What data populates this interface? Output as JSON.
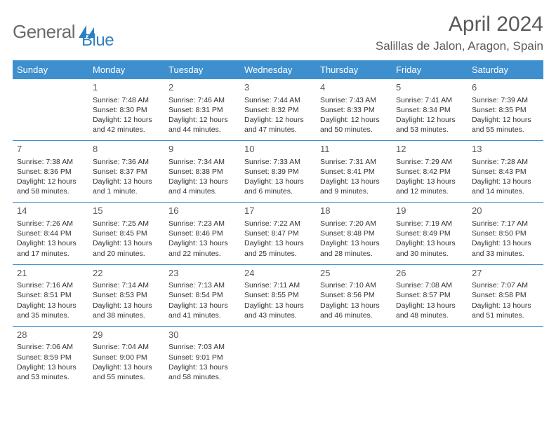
{
  "brand": {
    "word1": "General",
    "word2": "Blue",
    "color_general": "#6a6a6a",
    "color_blue": "#2d7fc1",
    "icon_fill": "#2d7fc1"
  },
  "header": {
    "title": "April 2024",
    "location": "Salillas de Jalon, Aragon, Spain",
    "title_color": "#5a5a5a"
  },
  "calendar": {
    "header_bg": "#3e8fce",
    "header_text": "#ffffff",
    "row_sep_color": "#3e8fce",
    "day_headers": [
      "Sunday",
      "Monday",
      "Tuesday",
      "Wednesday",
      "Thursday",
      "Friday",
      "Saturday"
    ],
    "weeks": [
      [
        null,
        {
          "n": "1",
          "l": [
            "Sunrise: 7:48 AM",
            "Sunset: 8:30 PM",
            "Daylight: 12 hours",
            "and 42 minutes."
          ]
        },
        {
          "n": "2",
          "l": [
            "Sunrise: 7:46 AM",
            "Sunset: 8:31 PM",
            "Daylight: 12 hours",
            "and 44 minutes."
          ]
        },
        {
          "n": "3",
          "l": [
            "Sunrise: 7:44 AM",
            "Sunset: 8:32 PM",
            "Daylight: 12 hours",
            "and 47 minutes."
          ]
        },
        {
          "n": "4",
          "l": [
            "Sunrise: 7:43 AM",
            "Sunset: 8:33 PM",
            "Daylight: 12 hours",
            "and 50 minutes."
          ]
        },
        {
          "n": "5",
          "l": [
            "Sunrise: 7:41 AM",
            "Sunset: 8:34 PM",
            "Daylight: 12 hours",
            "and 53 minutes."
          ]
        },
        {
          "n": "6",
          "l": [
            "Sunrise: 7:39 AM",
            "Sunset: 8:35 PM",
            "Daylight: 12 hours",
            "and 55 minutes."
          ]
        }
      ],
      [
        {
          "n": "7",
          "l": [
            "Sunrise: 7:38 AM",
            "Sunset: 8:36 PM",
            "Daylight: 12 hours",
            "and 58 minutes."
          ]
        },
        {
          "n": "8",
          "l": [
            "Sunrise: 7:36 AM",
            "Sunset: 8:37 PM",
            "Daylight: 13 hours",
            "and 1 minute."
          ]
        },
        {
          "n": "9",
          "l": [
            "Sunrise: 7:34 AM",
            "Sunset: 8:38 PM",
            "Daylight: 13 hours",
            "and 4 minutes."
          ]
        },
        {
          "n": "10",
          "l": [
            "Sunrise: 7:33 AM",
            "Sunset: 8:39 PM",
            "Daylight: 13 hours",
            "and 6 minutes."
          ]
        },
        {
          "n": "11",
          "l": [
            "Sunrise: 7:31 AM",
            "Sunset: 8:41 PM",
            "Daylight: 13 hours",
            "and 9 minutes."
          ]
        },
        {
          "n": "12",
          "l": [
            "Sunrise: 7:29 AM",
            "Sunset: 8:42 PM",
            "Daylight: 13 hours",
            "and 12 minutes."
          ]
        },
        {
          "n": "13",
          "l": [
            "Sunrise: 7:28 AM",
            "Sunset: 8:43 PM",
            "Daylight: 13 hours",
            "and 14 minutes."
          ]
        }
      ],
      [
        {
          "n": "14",
          "l": [
            "Sunrise: 7:26 AM",
            "Sunset: 8:44 PM",
            "Daylight: 13 hours",
            "and 17 minutes."
          ]
        },
        {
          "n": "15",
          "l": [
            "Sunrise: 7:25 AM",
            "Sunset: 8:45 PM",
            "Daylight: 13 hours",
            "and 20 minutes."
          ]
        },
        {
          "n": "16",
          "l": [
            "Sunrise: 7:23 AM",
            "Sunset: 8:46 PM",
            "Daylight: 13 hours",
            "and 22 minutes."
          ]
        },
        {
          "n": "17",
          "l": [
            "Sunrise: 7:22 AM",
            "Sunset: 8:47 PM",
            "Daylight: 13 hours",
            "and 25 minutes."
          ]
        },
        {
          "n": "18",
          "l": [
            "Sunrise: 7:20 AM",
            "Sunset: 8:48 PM",
            "Daylight: 13 hours",
            "and 28 minutes."
          ]
        },
        {
          "n": "19",
          "l": [
            "Sunrise: 7:19 AM",
            "Sunset: 8:49 PM",
            "Daylight: 13 hours",
            "and 30 minutes."
          ]
        },
        {
          "n": "20",
          "l": [
            "Sunrise: 7:17 AM",
            "Sunset: 8:50 PM",
            "Daylight: 13 hours",
            "and 33 minutes."
          ]
        }
      ],
      [
        {
          "n": "21",
          "l": [
            "Sunrise: 7:16 AM",
            "Sunset: 8:51 PM",
            "Daylight: 13 hours",
            "and 35 minutes."
          ]
        },
        {
          "n": "22",
          "l": [
            "Sunrise: 7:14 AM",
            "Sunset: 8:53 PM",
            "Daylight: 13 hours",
            "and 38 minutes."
          ]
        },
        {
          "n": "23",
          "l": [
            "Sunrise: 7:13 AM",
            "Sunset: 8:54 PM",
            "Daylight: 13 hours",
            "and 41 minutes."
          ]
        },
        {
          "n": "24",
          "l": [
            "Sunrise: 7:11 AM",
            "Sunset: 8:55 PM",
            "Daylight: 13 hours",
            "and 43 minutes."
          ]
        },
        {
          "n": "25",
          "l": [
            "Sunrise: 7:10 AM",
            "Sunset: 8:56 PM",
            "Daylight: 13 hours",
            "and 46 minutes."
          ]
        },
        {
          "n": "26",
          "l": [
            "Sunrise: 7:08 AM",
            "Sunset: 8:57 PM",
            "Daylight: 13 hours",
            "and 48 minutes."
          ]
        },
        {
          "n": "27",
          "l": [
            "Sunrise: 7:07 AM",
            "Sunset: 8:58 PM",
            "Daylight: 13 hours",
            "and 51 minutes."
          ]
        }
      ],
      [
        {
          "n": "28",
          "l": [
            "Sunrise: 7:06 AM",
            "Sunset: 8:59 PM",
            "Daylight: 13 hours",
            "and 53 minutes."
          ]
        },
        {
          "n": "29",
          "l": [
            "Sunrise: 7:04 AM",
            "Sunset: 9:00 PM",
            "Daylight: 13 hours",
            "and 55 minutes."
          ]
        },
        {
          "n": "30",
          "l": [
            "Sunrise: 7:03 AM",
            "Sunset: 9:01 PM",
            "Daylight: 13 hours",
            "and 58 minutes."
          ]
        },
        null,
        null,
        null,
        null
      ]
    ]
  }
}
